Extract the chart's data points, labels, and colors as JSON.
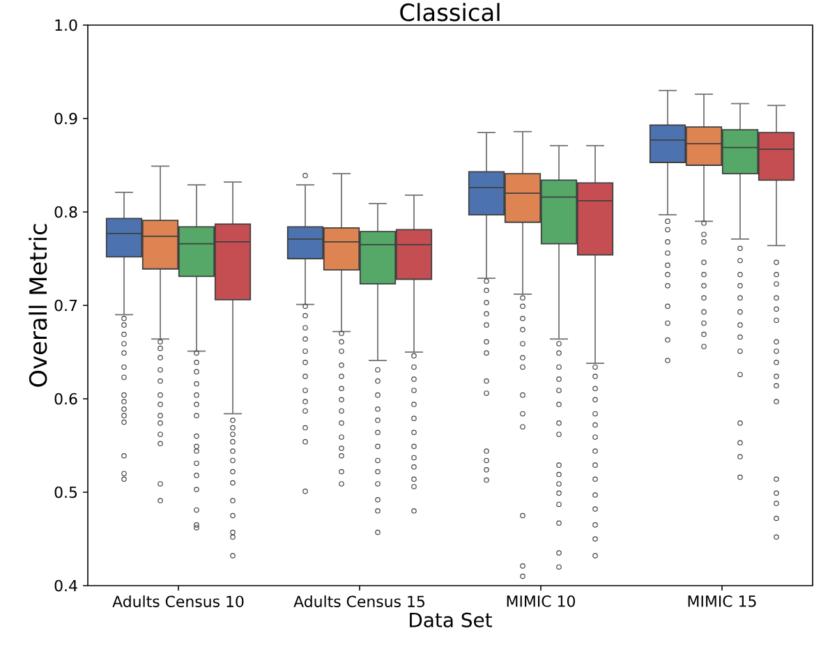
{
  "chart_data": {
    "type": "box",
    "title": "Classical",
    "xlabel": "Data Set",
    "ylabel": "Overall Metric",
    "categories": [
      "Adults Census 10",
      "Adults Census 15",
      "MIMIC 10",
      "MIMIC 15"
    ],
    "ylim": [
      0.4,
      1.0
    ],
    "yticks": [
      0.4,
      0.5,
      0.6,
      0.7,
      0.8,
      0.9,
      {
        "value": 1.0,
        "label": "1.0"
      }
    ],
    "grid": false,
    "series": [
      {
        "color": "#4c72b0",
        "boxes": [
          {
            "low": 0.69,
            "q1": 0.752,
            "median": 0.777,
            "q3": 0.793,
            "high": 0.821,
            "outliers": [
              0.686,
              0.679,
              0.669,
              0.659,
              0.649,
              0.634,
              0.623,
              0.604,
              0.597,
              0.589,
              0.582,
              0.575,
              0.539,
              0.52,
              0.514
            ]
          },
          {
            "low": 0.701,
            "q1": 0.75,
            "median": 0.771,
            "q3": 0.784,
            "high": 0.829,
            "outliers": [
              0.839,
              0.699,
              0.689,
              0.676,
              0.664,
              0.651,
              0.639,
              0.624,
              0.609,
              0.597,
              0.587,
              0.569,
              0.554,
              0.501
            ]
          },
          {
            "low": 0.729,
            "q1": 0.797,
            "median": 0.826,
            "q3": 0.843,
            "high": 0.885,
            "outliers": [
              0.726,
              0.716,
              0.703,
              0.691,
              0.679,
              0.661,
              0.649,
              0.619,
              0.606,
              0.544,
              0.534,
              0.524,
              0.513
            ]
          },
          {
            "low": 0.797,
            "q1": 0.853,
            "median": 0.877,
            "q3": 0.893,
            "high": 0.93,
            "outliers": [
              0.79,
              0.781,
              0.768,
              0.756,
              0.743,
              0.733,
              0.721,
              0.699,
              0.681,
              0.663,
              0.641
            ]
          }
        ]
      },
      {
        "color": "#dd8452",
        "boxes": [
          {
            "low": 0.664,
            "q1": 0.739,
            "median": 0.774,
            "q3": 0.791,
            "high": 0.849,
            "outliers": [
              0.661,
              0.654,
              0.644,
              0.631,
              0.619,
              0.604,
              0.594,
              0.582,
              0.574,
              0.562,
              0.552,
              0.509,
              0.491
            ]
          },
          {
            "low": 0.672,
            "q1": 0.738,
            "median": 0.768,
            "q3": 0.783,
            "high": 0.841,
            "outliers": [
              0.67,
              0.661,
              0.651,
              0.636,
              0.624,
              0.611,
              0.599,
              0.587,
              0.574,
              0.559,
              0.547,
              0.539,
              0.522,
              0.509
            ]
          },
          {
            "low": 0.712,
            "q1": 0.789,
            "median": 0.82,
            "q3": 0.841,
            "high": 0.886,
            "outliers": [
              0.708,
              0.699,
              0.686,
              0.674,
              0.659,
              0.644,
              0.634,
              0.604,
              0.584,
              0.57,
              0.475,
              0.421,
              0.41
            ]
          },
          {
            "low": 0.79,
            "q1": 0.85,
            "median": 0.873,
            "q3": 0.891,
            "high": 0.926,
            "outliers": [
              0.788,
              0.776,
              0.768,
              0.746,
              0.733,
              0.721,
              0.708,
              0.693,
              0.681,
              0.669,
              0.656
            ]
          }
        ]
      },
      {
        "color": "#55a868",
        "boxes": [
          {
            "low": 0.651,
            "q1": 0.731,
            "median": 0.766,
            "q3": 0.784,
            "high": 0.829,
            "outliers": [
              0.649,
              0.639,
              0.629,
              0.616,
              0.604,
              0.594,
              0.582,
              0.56,
              0.549,
              0.544,
              0.531,
              0.518,
              0.503,
              0.481,
              0.465,
              0.462
            ]
          },
          {
            "low": 0.641,
            "q1": 0.723,
            "median": 0.765,
            "q3": 0.779,
            "high": 0.809,
            "outliers": [
              0.631,
              0.619,
              0.604,
              0.589,
              0.577,
              0.564,
              0.549,
              0.534,
              0.522,
              0.509,
              0.492,
              0.48,
              0.457
            ]
          },
          {
            "low": 0.664,
            "q1": 0.766,
            "median": 0.816,
            "q3": 0.834,
            "high": 0.871,
            "outliers": [
              0.659,
              0.649,
              0.634,
              0.621,
              0.609,
              0.594,
              0.574,
              0.562,
              0.529,
              0.519,
              0.509,
              0.499,
              0.487,
              0.467,
              0.435,
              0.42
            ]
          },
          {
            "low": 0.771,
            "q1": 0.841,
            "median": 0.869,
            "q3": 0.888,
            "high": 0.916,
            "outliers": [
              0.761,
              0.748,
              0.733,
              0.721,
              0.708,
              0.693,
              0.679,
              0.666,
              0.651,
              0.626,
              0.574,
              0.553,
              0.538,
              0.516
            ]
          }
        ]
      },
      {
        "color": "#c44e52",
        "boxes": [
          {
            "low": 0.584,
            "q1": 0.706,
            "median": 0.768,
            "q3": 0.787,
            "high": 0.832,
            "outliers": [
              0.577,
              0.569,
              0.562,
              0.554,
              0.544,
              0.534,
              0.522,
              0.51,
              0.491,
              0.475,
              0.457,
              0.452,
              0.432
            ]
          },
          {
            "low": 0.65,
            "q1": 0.728,
            "median": 0.765,
            "q3": 0.781,
            "high": 0.818,
            "outliers": [
              0.646,
              0.634,
              0.621,
              0.609,
              0.594,
              0.579,
              0.564,
              0.549,
              0.537,
              0.527,
              0.514,
              0.506,
              0.48
            ]
          },
          {
            "low": 0.638,
            "q1": 0.754,
            "median": 0.812,
            "q3": 0.831,
            "high": 0.871,
            "outliers": [
              0.634,
              0.624,
              0.611,
              0.599,
              0.584,
              0.572,
              0.559,
              0.544,
              0.529,
              0.514,
              0.497,
              0.482,
              0.465,
              0.45,
              0.432
            ]
          },
          {
            "low": 0.764,
            "q1": 0.834,
            "median": 0.867,
            "q3": 0.885,
            "high": 0.914,
            "outliers": [
              0.746,
              0.733,
              0.723,
              0.708,
              0.696,
              0.684,
              0.661,
              0.651,
              0.639,
              0.624,
              0.614,
              0.597,
              0.514,
              0.499,
              0.488,
              0.472,
              0.452
            ]
          }
        ]
      }
    ]
  }
}
